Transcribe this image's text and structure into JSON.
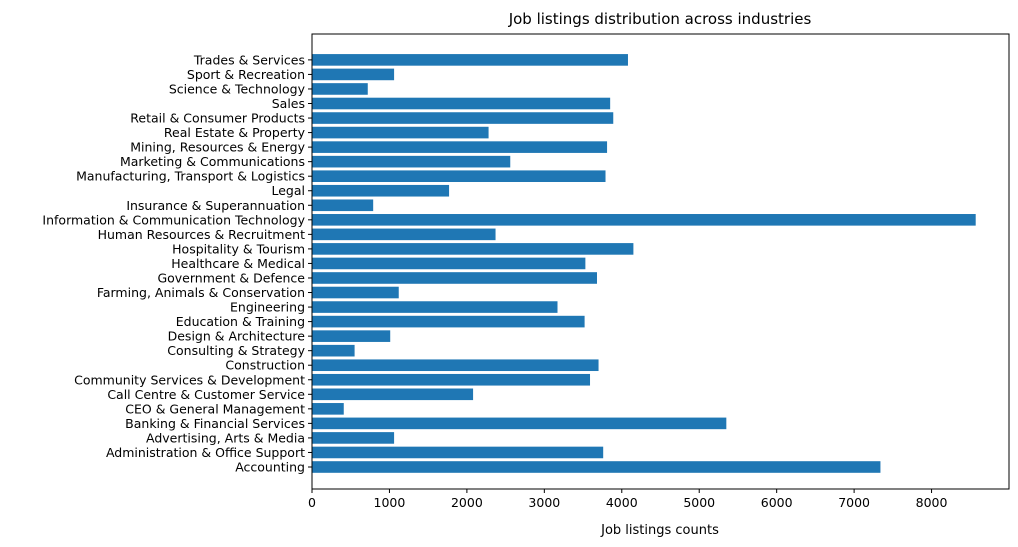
{
  "chart_data": {
    "type": "bar",
    "orientation": "horizontal",
    "title": "Job listings distribution across industries",
    "xlabel": "Job listings counts",
    "ylabel": "",
    "xlim": [
      0,
      9000
    ],
    "xticks": [
      0,
      1000,
      2000,
      3000,
      4000,
      5000,
      6000,
      7000,
      8000
    ],
    "xtick_labels": [
      "0",
      "1000",
      "2000",
      "3000",
      "4000",
      "5000",
      "6000",
      "7000",
      "8000"
    ],
    "grid": false,
    "legend": "none",
    "bar_color": "#1f77b4",
    "categories": [
      "Accounting",
      "Administration & Office Support",
      "Advertising, Arts & Media",
      "Banking & Financial Services",
      "CEO & General Management",
      "Call Centre & Customer Service",
      "Community Services & Development",
      "Construction",
      "Consulting & Strategy",
      "Design & Architecture",
      "Education & Training",
      "Engineering",
      "Farming, Animals & Conservation",
      "Government & Defence",
      "Healthcare & Medical",
      "Hospitality & Tourism",
      "Human Resources & Recruitment",
      "Information & Communication Technology",
      "Insurance & Superannuation",
      "Legal",
      "Manufacturing, Transport & Logistics",
      "Marketing & Communications",
      "Mining, Resources & Energy",
      "Real Estate & Property",
      "Retail & Consumer Products",
      "Sales",
      "Science & Technology",
      "Sport & Recreation",
      "Trades & Services"
    ],
    "values": [
      7340,
      3760,
      1060,
      5350,
      410,
      2080,
      3590,
      3700,
      550,
      1010,
      3520,
      3170,
      1120,
      3680,
      3530,
      4150,
      2370,
      8570,
      790,
      1770,
      3790,
      2560,
      3810,
      2280,
      3890,
      3850,
      720,
      1060,
      4080
    ]
  }
}
